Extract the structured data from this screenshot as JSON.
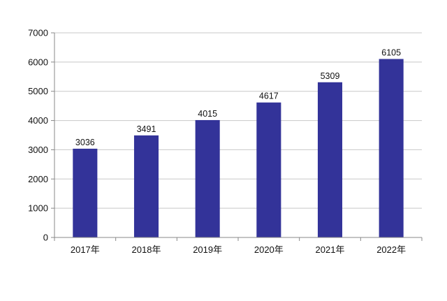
{
  "chart_data": {
    "type": "bar",
    "title": "",
    "xlabel": "",
    "ylabel": "",
    "categories": [
      "2017年",
      "2018年",
      "2019年",
      "2020年",
      "2021年",
      "2022年"
    ],
    "values": [
      3036,
      3491,
      4015,
      4617,
      5309,
      6105
    ],
    "data_labels": [
      "3036",
      "3491",
      "4015",
      "4617",
      "5309",
      "6105"
    ],
    "ylim": [
      0,
      7000
    ],
    "yticks": [
      0,
      1000,
      2000,
      3000,
      4000,
      5000,
      6000,
      7000
    ],
    "ytick_labels": [
      "0",
      "1000",
      "2000",
      "3000",
      "4000",
      "5000",
      "6000",
      "7000"
    ],
    "grid": true,
    "legend": "none",
    "bar_color": "#333399"
  }
}
